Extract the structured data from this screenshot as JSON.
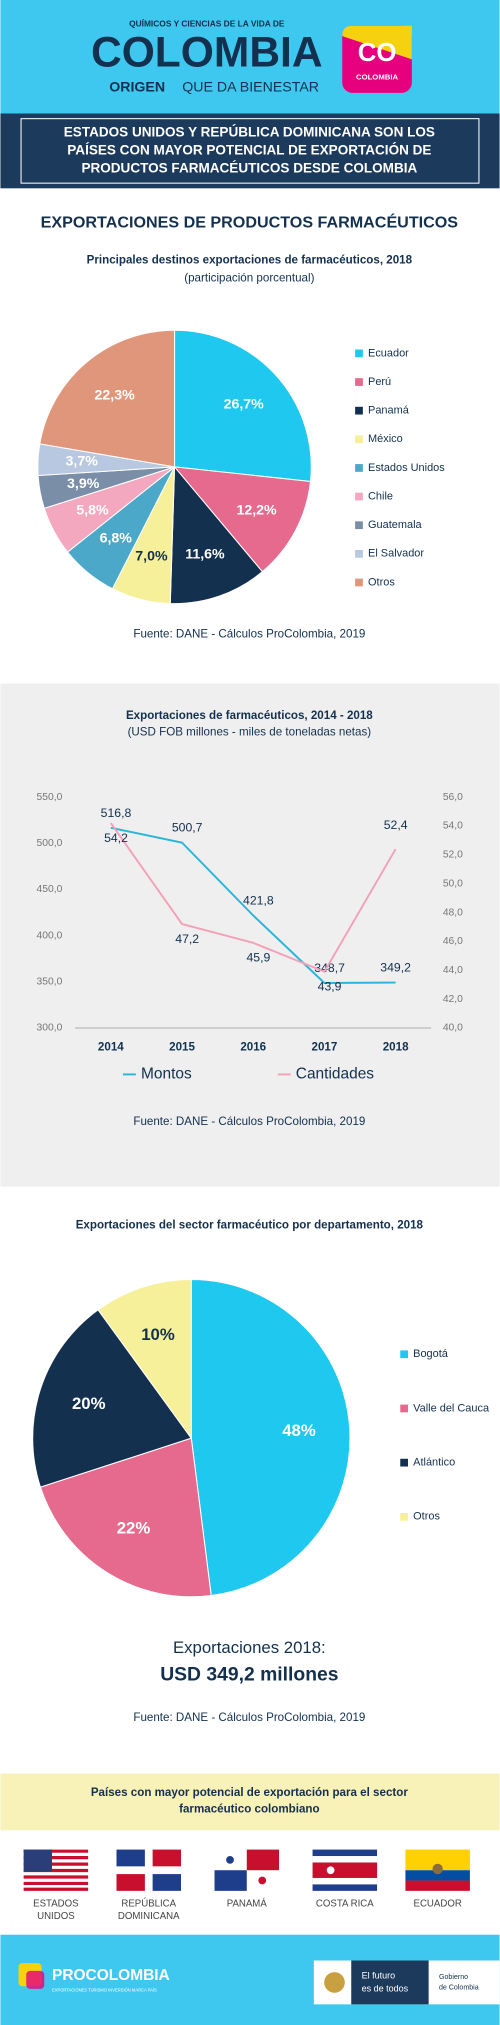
{
  "header": {
    "tagline": "QUÍMICOS Y CIENCIAS DE LA VIDA DE",
    "brand": "COLOMBIA",
    "slogan_1": "ORIGEN",
    "slogan_2": "QUE DA BIENESTAR",
    "badge_1": "CO",
    "badge_2": "COLOMBIA"
  },
  "headline": [
    "ESTADOS UNIDOS Y REPÚBLICA DOMINICANA SON LOS",
    "PAÍSES CON MAYOR POTENCIAL DE EXPORTACIÓN DE",
    "PRODUCTOS FARMACÉUTICOS DESDE COLOMBIA"
  ],
  "section_title": "EXPORTACIONES DE PRODUCTOS FARMACÉUTICOS",
  "chart_data": [
    {
      "type": "pie",
      "title": "Principales destinos exportaciones de farmacéuticos, 2018",
      "subtitle": "(participación porcentual)",
      "categories": [
        "Ecuador",
        "Perú",
        "Panamá",
        "México",
        "Estados Unidos",
        "Chile",
        "Guatemala",
        "El Salvador",
        "Otros"
      ],
      "values": [
        26.7,
        12.2,
        11.6,
        7.0,
        6.8,
        5.8,
        3.9,
        3.7,
        22.3
      ],
      "value_labels": [
        "26,7%",
        "12,2%",
        "11,6%",
        "7,0%",
        "6,8%",
        "5,8%",
        "3,9%",
        "3,7%",
        "22,3%"
      ],
      "colors": [
        "#1ec8ee",
        "#e56a8e",
        "#13304f",
        "#f7f09a",
        "#4ba8c8",
        "#f4a8c0",
        "#7a8ea8",
        "#b8c8e0",
        "#e0967a"
      ],
      "source": "Fuente: DANE - Cálculos ProColombia, 2019"
    },
    {
      "type": "line",
      "title": "Exportaciones de farmacéuticos, 2014 - 2018",
      "subtitle": "(USD FOB millones - miles de toneladas netas)",
      "categories": [
        "2014",
        "2015",
        "2016",
        "2017",
        "2018"
      ],
      "series": [
        {
          "name": "Montos",
          "color": "#29b6d8",
          "values": [
            516.8,
            500.7,
            421.8,
            348.7,
            349.2
          ],
          "value_labels": [
            "516,8",
            "500,7",
            "421,8",
            "348,7",
            "349,2"
          ]
        },
        {
          "name": "Cantidades",
          "color": "#f4a0b8",
          "axis": "y2",
          "values": [
            54.2,
            47.2,
            45.9,
            43.9,
            52.4
          ],
          "value_labels": [
            "54,2",
            "47,2",
            "45,9",
            "43,9",
            "52,4"
          ]
        }
      ],
      "ylim": [
        300,
        550
      ],
      "yticks": [
        {
          "value": 300,
          "label": "300,0"
        },
        {
          "value": 350,
          "label": "350,0"
        },
        {
          "value": 400,
          "label": "400,0"
        },
        {
          "value": 450,
          "label": "450,0"
        },
        {
          "value": 500,
          "label": "500,0"
        },
        {
          "value": 550,
          "label": "550,0"
        }
      ],
      "y2lim": [
        40,
        56
      ],
      "y2ticks": [
        {
          "value": 40,
          "label": "40,0"
        },
        {
          "value": 42,
          "label": "42,0"
        },
        {
          "value": 44,
          "label": "44,0"
        },
        {
          "value": 46,
          "label": "46,0"
        },
        {
          "value": 48,
          "label": "48,0"
        },
        {
          "value": 50,
          "label": "50,0"
        },
        {
          "value": 52,
          "label": "52,0"
        },
        {
          "value": 54,
          "label": "54,0"
        },
        {
          "value": 56,
          "label": "56,0"
        }
      ],
      "grid": false,
      "legend": "bottom",
      "source": "Fuente: DANE - Cálculos ProColombia, 2019"
    },
    {
      "type": "pie",
      "title": "Exportaciones del sector farmacéutico por departamento, 2018",
      "categories": [
        "Bogotá",
        "Valle del Cauca",
        "Atlántico",
        "Otros"
      ],
      "values": [
        48,
        22,
        20,
        10
      ],
      "value_labels": [
        "48%",
        "22%",
        "20%",
        "10%"
      ],
      "colors": [
        "#1ec8ee",
        "#e56a8e",
        "#13304f",
        "#f7f09a"
      ],
      "summary_1": "Exportaciones 2018:",
      "summary_2": "USD 349,2 millones",
      "source": "Fuente: DANE - Cálculos ProColombia, 2019"
    }
  ],
  "countries": {
    "title": [
      "Países con mayor potencial de exportación para el sector",
      "farmacéutico colombiano"
    ],
    "items": [
      [
        "ESTADOS",
        "UNIDOS"
      ],
      [
        "REPÚBLICA",
        "DOMINICANA"
      ],
      [
        "PANAMÁ"
      ],
      [
        "COSTA RICA"
      ],
      [
        "ECUADOR"
      ]
    ]
  },
  "footer": {
    "brand": "PROCOLOMBIA",
    "tagline": "EXPORTACIONES TURISMO INVERSIÓN MARCA PAÍS",
    "gov_1": "El futuro",
    "gov_2": "es de todos",
    "gov_3": "Gobierno",
    "gov_4": "de Colombia"
  }
}
